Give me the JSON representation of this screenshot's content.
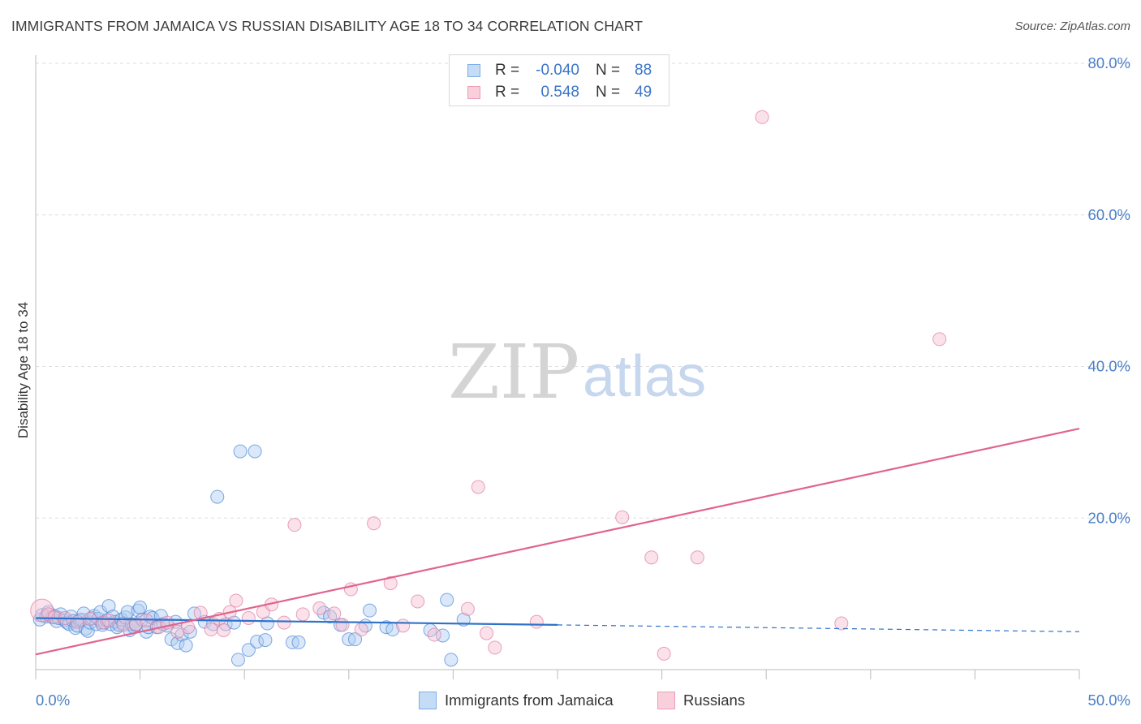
{
  "title": "IMMIGRANTS FROM JAMAICA VS RUSSIAN DISABILITY AGE 18 TO 34 CORRELATION CHART",
  "source": "Source: ZipAtlas.com",
  "watermark": {
    "zip": "ZIP",
    "atlas": "atlas"
  },
  "legend": {
    "rows": [
      {
        "r_label": "R =",
        "r_value": "-0.040",
        "n_label": "N =",
        "n_value": "88",
        "color": "#7aaee8",
        "fill": "#c5dcf7"
      },
      {
        "r_label": "R =",
        "r_value": "0.548",
        "n_label": "N =",
        "n_value": "49",
        "color": "#ec9fb8",
        "fill": "#f9cfdc"
      }
    ]
  },
  "bottom_legend": [
    {
      "label": "Immigrants from Jamaica",
      "color": "#7aaee8",
      "fill": "#c5dcf7"
    },
    {
      "label": "Russians",
      "color": "#ec9fb8",
      "fill": "#f9cfdc"
    }
  ],
  "chart_data": {
    "type": "scatter",
    "title": "IMMIGRANTS FROM JAMAICA VS RUSSIAN DISABILITY AGE 18 TO 34 CORRELATION CHART",
    "xlabel": "",
    "ylabel": "Disability Age 18 to 34",
    "xlim": [
      0,
      50
    ],
    "ylim": [
      0,
      80
    ],
    "x_tick_labels": [
      {
        "value": 0,
        "label": "0.0%"
      },
      {
        "value": 50,
        "label": "50.0%"
      }
    ],
    "y_tick_labels": [
      {
        "value": 20,
        "label": "20.0%"
      },
      {
        "value": 40,
        "label": "40.0%"
      },
      {
        "value": 60,
        "label": "60.0%"
      },
      {
        "value": 80,
        "label": "80.0%"
      }
    ],
    "x_minor_ticks": [
      0,
      5,
      10,
      15,
      20,
      25,
      30,
      35,
      40,
      45,
      50
    ],
    "grid": "horizontal dashed",
    "series": [
      {
        "name": "Immigrants from Jamaica",
        "color": "#4a86d6",
        "fill": "#aecdf2",
        "trend": {
          "x0": 0,
          "y0": 6.8,
          "x1": 25,
          "y1": 5.9,
          "dashed_to_x": 50,
          "dashed_to_y": 5.0,
          "color": "#2f72c8"
        },
        "points": [
          [
            0.2,
            6.6
          ],
          [
            0.3,
            7.2
          ],
          [
            0.5,
            7.0
          ],
          [
            0.6,
            7.6
          ],
          [
            0.8,
            6.9
          ],
          [
            0.9,
            7.1
          ],
          [
            1.0,
            6.4
          ],
          [
            1.1,
            6.8
          ],
          [
            1.2,
            7.3
          ],
          [
            1.4,
            6.5
          ],
          [
            1.5,
            6.2
          ],
          [
            1.6,
            6.0
          ],
          [
            1.7,
            7.0
          ],
          [
            1.8,
            6.4
          ],
          [
            1.9,
            5.5
          ],
          [
            2.0,
            5.8
          ],
          [
            2.1,
            6.5
          ],
          [
            2.2,
            6.6
          ],
          [
            2.3,
            7.4
          ],
          [
            2.4,
            5.4
          ],
          [
            2.5,
            5.1
          ],
          [
            2.6,
            6.2
          ],
          [
            2.7,
            6.8
          ],
          [
            2.8,
            7.1
          ],
          [
            2.9,
            6.0
          ],
          [
            3.0,
            6.7
          ],
          [
            3.1,
            7.6
          ],
          [
            3.2,
            5.9
          ],
          [
            3.3,
            6.2
          ],
          [
            3.4,
            6.5
          ],
          [
            3.5,
            8.4
          ],
          [
            3.6,
            6.0
          ],
          [
            3.7,
            7.0
          ],
          [
            3.8,
            6.3
          ],
          [
            3.9,
            5.6
          ],
          [
            4.0,
            5.9
          ],
          [
            4.1,
            6.6
          ],
          [
            4.2,
            6.1
          ],
          [
            4.3,
            6.9
          ],
          [
            4.4,
            7.6
          ],
          [
            4.5,
            5.2
          ],
          [
            4.6,
            6.0
          ],
          [
            4.7,
            5.6
          ],
          [
            4.8,
            5.9
          ],
          [
            4.9,
            7.8
          ],
          [
            5.0,
            8.2
          ],
          [
            5.1,
            6.6
          ],
          [
            5.3,
            5.0
          ],
          [
            5.4,
            5.6
          ],
          [
            5.5,
            7.0
          ],
          [
            5.6,
            6.8
          ],
          [
            5.8,
            5.6
          ],
          [
            6.0,
            7.1
          ],
          [
            6.1,
            6.0
          ],
          [
            6.3,
            5.8
          ],
          [
            6.5,
            4.0
          ],
          [
            6.7,
            6.3
          ],
          [
            6.8,
            3.5
          ],
          [
            7.0,
            4.6
          ],
          [
            7.2,
            3.2
          ],
          [
            7.4,
            5.0
          ],
          [
            7.6,
            7.4
          ],
          [
            8.1,
            6.3
          ],
          [
            8.5,
            6.0
          ],
          [
            8.7,
            22.8
          ],
          [
            9.1,
            6.0
          ],
          [
            9.5,
            6.2
          ],
          [
            9.7,
            1.3
          ],
          [
            9.8,
            28.8
          ],
          [
            10.2,
            2.6
          ],
          [
            10.5,
            28.8
          ],
          [
            10.6,
            3.7
          ],
          [
            11.0,
            3.9
          ],
          [
            11.1,
            6.1
          ],
          [
            12.3,
            3.6
          ],
          [
            12.6,
            3.6
          ],
          [
            13.8,
            7.5
          ],
          [
            14.1,
            7.0
          ],
          [
            14.6,
            5.9
          ],
          [
            15.0,
            4.0
          ],
          [
            15.3,
            4.0
          ],
          [
            15.8,
            5.8
          ],
          [
            16.0,
            7.8
          ],
          [
            16.8,
            5.6
          ],
          [
            17.1,
            5.3
          ],
          [
            18.9,
            5.2
          ],
          [
            19.5,
            4.5
          ],
          [
            19.7,
            9.2
          ],
          [
            19.9,
            1.3
          ],
          [
            20.5,
            6.6
          ]
        ]
      },
      {
        "name": "Russians",
        "color": "#e07aa0",
        "fill": "#f6bfd1",
        "trend": {
          "x0": 0,
          "y0": 2.0,
          "x1": 50,
          "y1": 31.8,
          "color": "#e0648e"
        },
        "points": [
          [
            0.3,
            7.8
          ],
          [
            0.6,
            7.3
          ],
          [
            0.9,
            6.9
          ],
          [
            1.4,
            6.8
          ],
          [
            2.0,
            6.3
          ],
          [
            2.6,
            6.7
          ],
          [
            3.2,
            6.2
          ],
          [
            3.5,
            6.5
          ],
          [
            4.2,
            5.9
          ],
          [
            4.8,
            6.0
          ],
          [
            5.3,
            6.5
          ],
          [
            5.9,
            5.6
          ],
          [
            6.3,
            6.2
          ],
          [
            6.8,
            5.0
          ],
          [
            7.3,
            5.6
          ],
          [
            7.9,
            7.5
          ],
          [
            8.4,
            5.3
          ],
          [
            8.8,
            6.7
          ],
          [
            9.0,
            5.2
          ],
          [
            9.3,
            7.6
          ],
          [
            9.6,
            9.1
          ],
          [
            10.2,
            6.8
          ],
          [
            10.9,
            7.6
          ],
          [
            11.3,
            8.6
          ],
          [
            11.9,
            6.2
          ],
          [
            12.4,
            19.1
          ],
          [
            12.8,
            7.3
          ],
          [
            13.6,
            8.1
          ],
          [
            14.3,
            7.4
          ],
          [
            14.7,
            5.9
          ],
          [
            15.1,
            10.6
          ],
          [
            15.6,
            5.3
          ],
          [
            16.2,
            19.3
          ],
          [
            17.0,
            11.4
          ],
          [
            17.6,
            5.8
          ],
          [
            18.3,
            9.0
          ],
          [
            19.1,
            4.6
          ],
          [
            20.7,
            8.0
          ],
          [
            21.2,
            24.1
          ],
          [
            21.6,
            4.8
          ],
          [
            22.0,
            2.9
          ],
          [
            28.1,
            20.1
          ],
          [
            29.5,
            14.8
          ],
          [
            30.1,
            2.1
          ],
          [
            31.7,
            14.8
          ],
          [
            34.8,
            72.9
          ],
          [
            38.6,
            6.1
          ],
          [
            43.3,
            43.6
          ],
          [
            24.0,
            6.3
          ]
        ]
      }
    ]
  }
}
